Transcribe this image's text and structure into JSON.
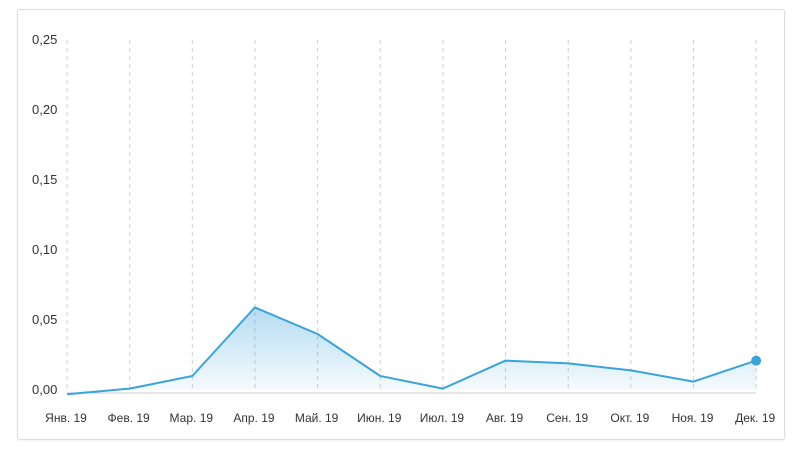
{
  "chart_data": {
    "type": "area",
    "categories": [
      "Янв. 19",
      "Фев. 19",
      "Мар. 19",
      "Апр. 19",
      "Май. 19",
      "Июн. 19",
      "Июл. 19",
      "Авг. 19",
      "Сен. 19",
      "Окт. 19",
      "Ноя. 19",
      "Дек. 19"
    ],
    "series": [
      {
        "values": [
          -0.003,
          0.001,
          0.01,
          0.059,
          0.04,
          0.01,
          0.001,
          0.021,
          0.019,
          0.014,
          0.006,
          0.021
        ]
      }
    ],
    "y_ticks": [
      "0,00",
      "0,05",
      "0,10",
      "0,15",
      "0,20",
      "0,25"
    ],
    "ylim": [
      0,
      0.25
    ],
    "grid": "vertical-dashed",
    "highlight_last_point": true,
    "colors": {
      "line": "#3aa3dc",
      "fill": "#3aa3dc",
      "grid": "#cfcfcf",
      "axis": "#cccccc",
      "text": "#333333"
    }
  }
}
